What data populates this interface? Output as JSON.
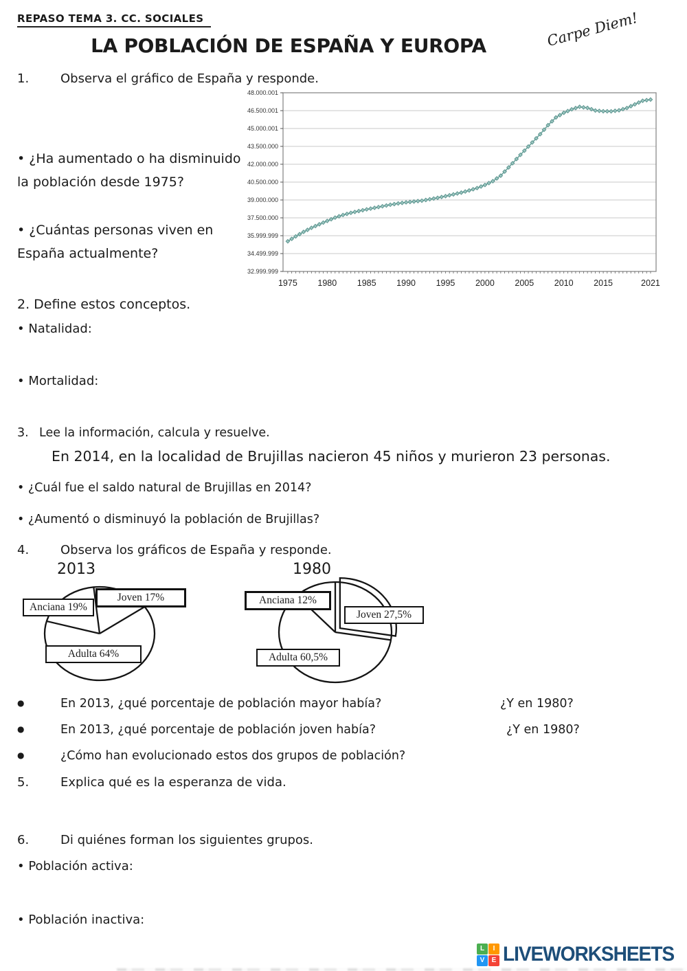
{
  "page": {
    "header": "REPASO TEMA 3.  CC. SOCIALES",
    "title": "LA POBLACIÓN DE ESPAÑA Y EUROPA",
    "handwriting": "Carpe Diem!"
  },
  "questions": {
    "q1": {
      "marker": "1.",
      "text": "Observa el gráfico de España y responde.",
      "sub": [
        "• ¿Ha aumentado o ha disminuido la población desde 1975?",
        "• ¿Cuántas personas viven en España actualmente?"
      ]
    },
    "q2": {
      "heading": "2. Define estos conceptos.",
      "items": [
        "• Natalidad:",
        "• Mortalidad:"
      ]
    },
    "q3": {
      "marker": "3.",
      "text": "Lee la información, calcula y resuelve.",
      "statement": "En 2014, en la localidad de Brujillas nacieron 45 niños y murieron 23 personas.",
      "sub": [
        "• ¿Cuál fue el saldo natural de Brujillas en 2014?",
        "• ¿Aumentó o disminuyó la población de Brujillas?"
      ]
    },
    "q4": {
      "marker": "4.",
      "text": "Observa los gráficos de España y responde.",
      "bullets": [
        {
          "marker": "●",
          "text": "En 2013, ¿qué porcentaje de población  mayor había?",
          "right": "¿Y en 1980?"
        },
        {
          "marker": "●",
          "text": "En 2013, ¿qué porcentaje de población joven había?",
          "right": "¿Y en 1980?"
        },
        {
          "marker": "●",
          "text": "¿Cómo han evolucionado estos dos grupos de población?",
          "right": ""
        }
      ]
    },
    "q5": {
      "marker": "5.",
      "text": "Explica qué es la esperanza de vida."
    },
    "q6": {
      "marker": "6.",
      "text": "Di quiénes forman los siguientes grupos.",
      "items": [
        "• Población activa:",
        "• Población inactiva:"
      ]
    }
  },
  "chart_data": [
    {
      "type": "line",
      "title": "",
      "xlabel": "",
      "ylabel": "",
      "x_tick_labels": [
        "1975",
        "1980",
        "1985",
        "1990",
        "1995",
        "2000",
        "2005",
        "2010",
        "2015",
        "2021"
      ],
      "x_tick_years": [
        1975,
        1980,
        1985,
        1990,
        1995,
        2000,
        2005,
        2010,
        2015,
        2021
      ],
      "y_tick_labels": [
        "48.000.001",
        "46.500.001",
        "45.000.001",
        "43.500.000",
        "42.000.000",
        "40.500.000",
        "39.000.000",
        "37.500.000",
        "35.999.999",
        "34.499.999",
        "32.999.999"
      ],
      "ylim_millions": [
        33.0,
        48.0
      ],
      "grid": true,
      "legend": false,
      "line_color": "#6aa39c",
      "marker_fill": "#9ec7c2",
      "marker_stroke": "#55908a",
      "years": [
        1975,
        1976,
        1977,
        1978,
        1979,
        1980,
        1981,
        1982,
        1983,
        1984,
        1985,
        1986,
        1987,
        1988,
        1989,
        1990,
        1991,
        1992,
        1993,
        1994,
        1995,
        1996,
        1997,
        1998,
        1999,
        2000,
        2001,
        2002,
        2003,
        2004,
        2005,
        2006,
        2007,
        2008,
        2009,
        2010,
        2011,
        2012,
        2013,
        2014,
        2015,
        2016,
        2017,
        2018,
        2019,
        2020,
        2021
      ],
      "values_millions": [
        35.53,
        35.94,
        36.32,
        36.66,
        36.96,
        37.24,
        37.52,
        37.74,
        37.92,
        38.07,
        38.21,
        38.34,
        38.47,
        38.6,
        38.71,
        38.8,
        38.87,
        38.94,
        39.06,
        39.18,
        39.32,
        39.47,
        39.62,
        39.8,
        40.0,
        40.26,
        40.58,
        41.04,
        41.73,
        42.44,
        43.14,
        43.83,
        44.52,
        45.28,
        45.93,
        46.32,
        46.61,
        46.82,
        46.73,
        46.51,
        46.45,
        46.44,
        46.53,
        46.72,
        47.03,
        47.33,
        47.43
      ]
    },
    {
      "type": "pie",
      "title": "2013",
      "start_angle_deg": 35,
      "exploded": null,
      "slices": [
        {
          "name": "Joven",
          "label": "Joven 17%",
          "pct": 17
        },
        {
          "name": "Anciana",
          "label": "Anciana 19%",
          "pct": 19
        },
        {
          "name": "Adulta",
          "label": "Adulta 64%",
          "pct": 64
        }
      ]
    },
    {
      "type": "pie",
      "title": "1980",
      "start_angle_deg": -9,
      "exploded": "Joven",
      "slices": [
        {
          "name": "Joven",
          "label": "Joven 27,5%",
          "pct": 27.5
        },
        {
          "name": "Anciana",
          "label": "Anciana 12%",
          "pct": 12
        },
        {
          "name": "Adulta",
          "label": "Adulta 60,5%",
          "pct": 60.5
        }
      ]
    }
  ],
  "footer": {
    "brand": "LIVEWORKSHEETS",
    "brand_color": "#1d4e79",
    "tiles": [
      {
        "ch": "L",
        "color": "#4caf50"
      },
      {
        "ch": "I",
        "color": "#ff9800"
      },
      {
        "ch": "V",
        "color": "#2196f3"
      },
      {
        "ch": "E",
        "color": "#f44336"
      }
    ]
  }
}
